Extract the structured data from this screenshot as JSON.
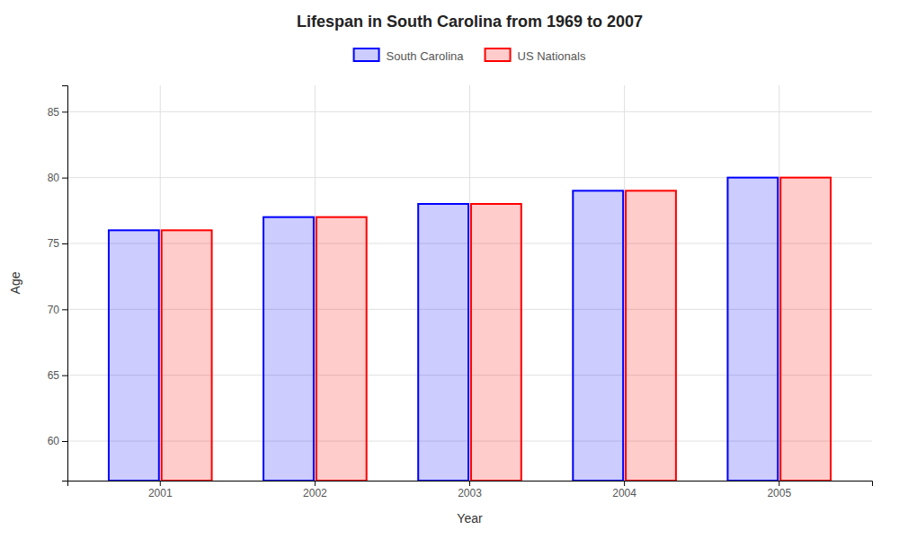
{
  "chart_data": {
    "type": "bar",
    "title": "Lifespan in South Carolina from 1969 to 2007",
    "xlabel": "Year",
    "ylabel": "Age",
    "categories": [
      "2001",
      "2002",
      "2003",
      "2004",
      "2005"
    ],
    "series": [
      {
        "name": "South Carolina",
        "color": "#0000ff",
        "values": [
          76,
          77,
          78,
          79,
          80
        ]
      },
      {
        "name": "US Nationals",
        "color": "#ff0000",
        "values": [
          76,
          77,
          78,
          79,
          80
        ]
      }
    ],
    "ylim": [
      57,
      87
    ],
    "yticks": [
      60,
      65,
      70,
      75,
      80,
      85
    ],
    "grid": true,
    "legend": "top"
  }
}
